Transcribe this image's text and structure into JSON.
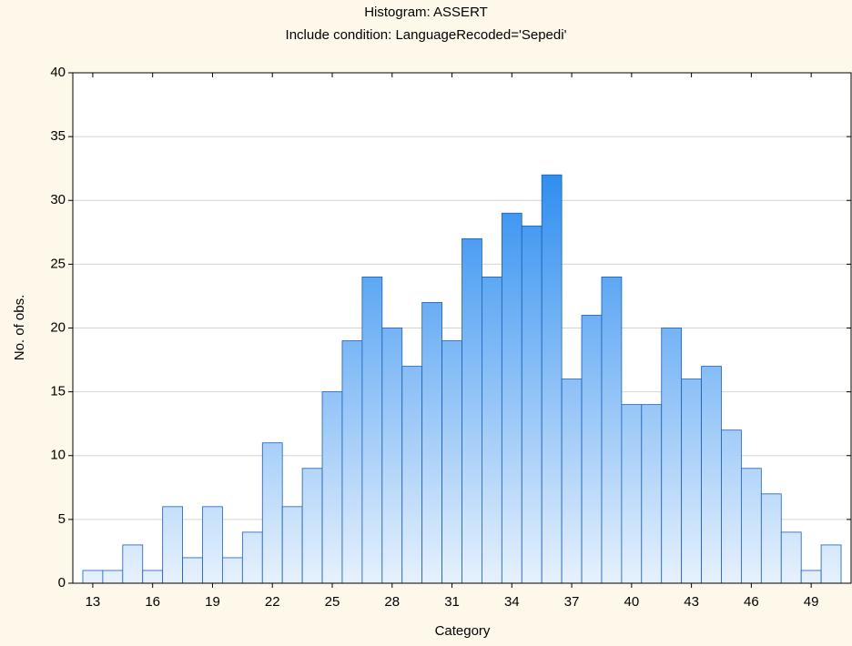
{
  "chart_data": {
    "type": "histogram",
    "title": "Histogram: ASSERT",
    "subtitle": "Include condition: LanguageRecoded='Sepedi'",
    "x_label": "Category",
    "y_label": "No. of obs.",
    "bins": [
      12.5,
      13.5,
      14.5,
      15.5,
      16.5,
      17.5,
      18.5,
      19.5,
      20.5,
      21.5,
      22.5,
      23.5,
      24.5,
      25.5,
      26.5,
      27.5,
      28.5,
      29.5,
      30.5,
      31.5,
      32.5,
      33.5,
      34.5,
      35.5,
      36.5,
      37.5,
      38.5,
      39.5,
      40.5,
      41.5,
      42.5,
      43.5,
      44.5,
      45.5,
      46.5,
      47.5,
      48.5,
      49.5,
      50.5
    ],
    "values": [
      1,
      1,
      3,
      1,
      6,
      2,
      6,
      2,
      4,
      11,
      6,
      9,
      15,
      19,
      24,
      20,
      17,
      22,
      19,
      27,
      24,
      29,
      28,
      32,
      16,
      21,
      24,
      14,
      14,
      20,
      16,
      17,
      12,
      9,
      7,
      4,
      1,
      3
    ],
    "color": "#2f8ef0",
    "xlim": [
      12,
      51
    ],
    "xticks": [
      13,
      16,
      19,
      22,
      25,
      28,
      31,
      34,
      37,
      40,
      43,
      46,
      49
    ],
    "ylim": [
      0,
      40
    ],
    "yticks": [
      0,
      5,
      10,
      15,
      20,
      25,
      30,
      35,
      40
    ],
    "grid": true
  }
}
